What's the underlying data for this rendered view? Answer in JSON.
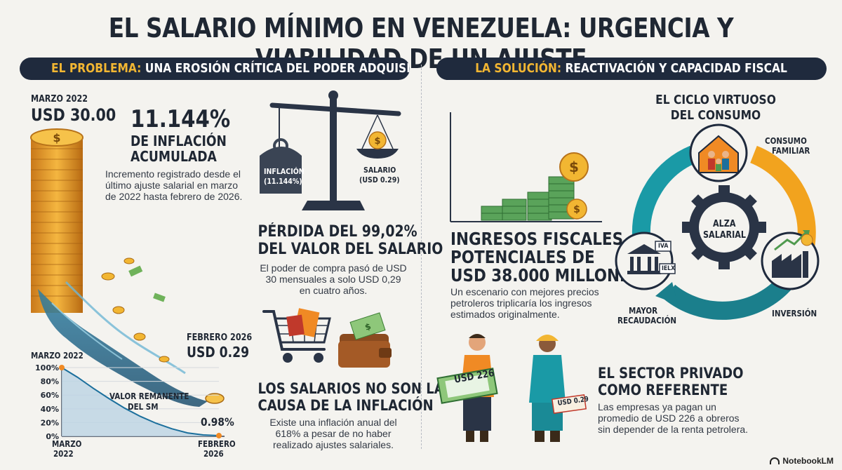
{
  "title": "EL SALARIO MÍNIMO EN VENEZUELA: URGENCIA Y VIABILIDAD DE UN AJUSTE",
  "left_header": {
    "highlight": "EL PROBLEMA:",
    "rest": " UNA EROSIÓN CRÍTICA DEL PODER ADQUISITIVO"
  },
  "right_header": {
    "highlight": "LA SOLUCIÓN:",
    "rest": " REACTIVACIÓN Y CAPACIDAD FISCAL"
  },
  "coins": {
    "start_date": "MARZO 2022",
    "start_value": "USD 30.00",
    "end_date": "FEBRERO 2026",
    "end_value": "USD 0.29"
  },
  "inflation": {
    "figure": "11.144%",
    "label_line1": "DE INFLACIÓN",
    "label_line2": "ACUMULADA",
    "desc_lines": [
      "Incremento registrado desde el",
      "último ajuste salarial en marzo",
      "de 2022 hasta febrero de 2026."
    ]
  },
  "scale": {
    "left_label_line1": "INFLACIÓN",
    "left_label_line2": "(11.144%)",
    "right_label_line1": "SALARIO",
    "right_label_line2": "(USD 0.29)"
  },
  "loss": {
    "heading_line1": "PÉRDIDA DEL 99,02%",
    "heading_line2": "DEL VALOR DEL SALARIO",
    "desc_lines": [
      "El poder de compra pasó de USD",
      "30 mensuales a solo USD 0,29",
      "en cuatro años."
    ]
  },
  "cause": {
    "heading_line1": "LOS SALARIOS NO SON LA",
    "heading_line2": "CAUSA DE LA INFLACIÓN",
    "desc_lines": [
      "Existe una inflación anual del",
      "618% a pesar de no haber",
      "realizado ajustes salariales."
    ]
  },
  "chart_data": {
    "type": "area",
    "x": [
      "MARZO 2022",
      "FEBRERO 2026"
    ],
    "series": [
      {
        "name": "VALOR REMANENTE DEL SM",
        "x": [
          0,
          0.1,
          0.2,
          0.3,
          0.4,
          0.5,
          0.6,
          0.7,
          0.8,
          0.9,
          1.0
        ],
        "values": [
          100,
          86,
          70,
          55,
          41,
          29,
          19,
          11,
          5,
          2,
          0.98
        ]
      }
    ],
    "yticks": [
      "100%",
      "80%",
      "60%",
      "40%",
      "20%",
      "0%"
    ],
    "ylim": [
      0,
      100
    ],
    "top_annotation": "MARZO 2022",
    "end_annotation": "0.98%",
    "area_label_line1": "VALOR REMANENTE",
    "area_label_line2": "DEL SM",
    "xtick_left_line1": "MARZO",
    "xtick_left_line2": "2022",
    "xtick_right_line1": "FEBRERO",
    "xtick_right_line2": "2026"
  },
  "fiscal": {
    "heading_line1": "INGRESOS FISCALES",
    "heading_line2": "POTENCIALES DE",
    "heading_line3": "USD 38.000 MILLONES",
    "desc_lines": [
      "Un escenario con mejores precios",
      "petroleros triplicaría los ingresos",
      "estimados originalmente."
    ]
  },
  "cycle": {
    "title_line1": "EL CICLO VIRTUOSO",
    "title_line2": "DEL CONSUMO",
    "center_line1": "ALZA",
    "center_line2": "SALARIAL",
    "consumo_line1": "CONSUMO",
    "consumo_line2": "FAMILIAR",
    "inversion": "INVERSIÓN",
    "recaudacion_line1": "MAYOR",
    "recaudacion_line2": "RECAUDACIÓN",
    "tax1": "IVA",
    "tax2": "IELX"
  },
  "private": {
    "bill_left": "USD 226",
    "bill_right": "USD 0.29",
    "heading_line1": "EL SECTOR PRIVADO",
    "heading_line2": "COMO REFERENTE",
    "desc_lines": [
      "Las empresas ya pagan un",
      "promedio de USD 226 a obreros",
      "sin depender de la renta petrolera."
    ]
  },
  "brand": "NotebookLM",
  "colors": {
    "navy": "#1f2a3d",
    "gold": "#f2b632",
    "teal": "#1b7f8c",
    "orange": "#f08a24",
    "green": "#4f9a4f"
  }
}
